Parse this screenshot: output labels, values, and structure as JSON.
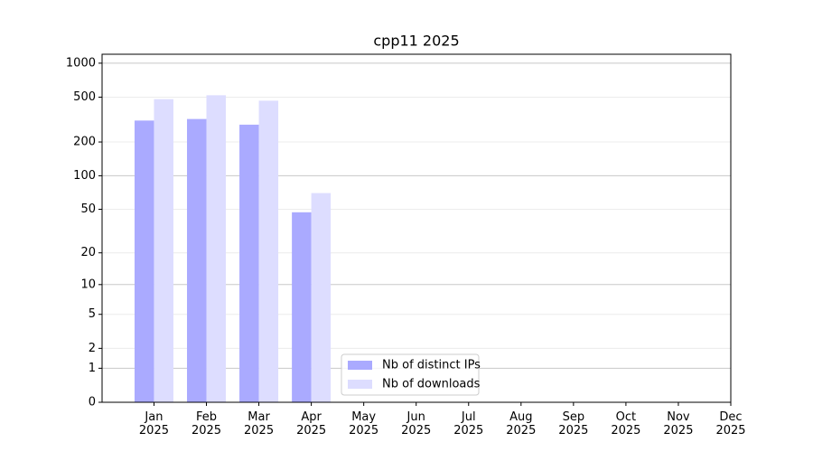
{
  "chart_data": {
    "type": "bar",
    "title": "cpp11 2025",
    "categories": [
      "Jan\n2025",
      "Feb\n2025",
      "Mar\n2025",
      "Apr\n2025",
      "May\n2025",
      "Jun\n2025",
      "Jul\n2025",
      "Aug\n2025",
      "Sep\n2025",
      "Oct\n2025",
      "Nov\n2025",
      "Dec\n2025"
    ],
    "series": [
      {
        "name": "Nb of distinct IPs",
        "color": "#aaaaff",
        "values": [
          310,
          320,
          285,
          47,
          null,
          null,
          null,
          null,
          null,
          null,
          null,
          null
        ]
      },
      {
        "name": "Nb of downloads",
        "color": "#ddddff",
        "values": [
          480,
          520,
          465,
          70,
          null,
          null,
          null,
          null,
          null,
          null,
          null,
          null
        ]
      }
    ],
    "yscale": "symlog",
    "ylim": [
      0,
      1200
    ],
    "yticks": [
      0,
      1,
      2,
      5,
      10,
      20,
      50,
      100,
      200,
      500,
      1000
    ],
    "grid": true,
    "legend": "lower center"
  }
}
